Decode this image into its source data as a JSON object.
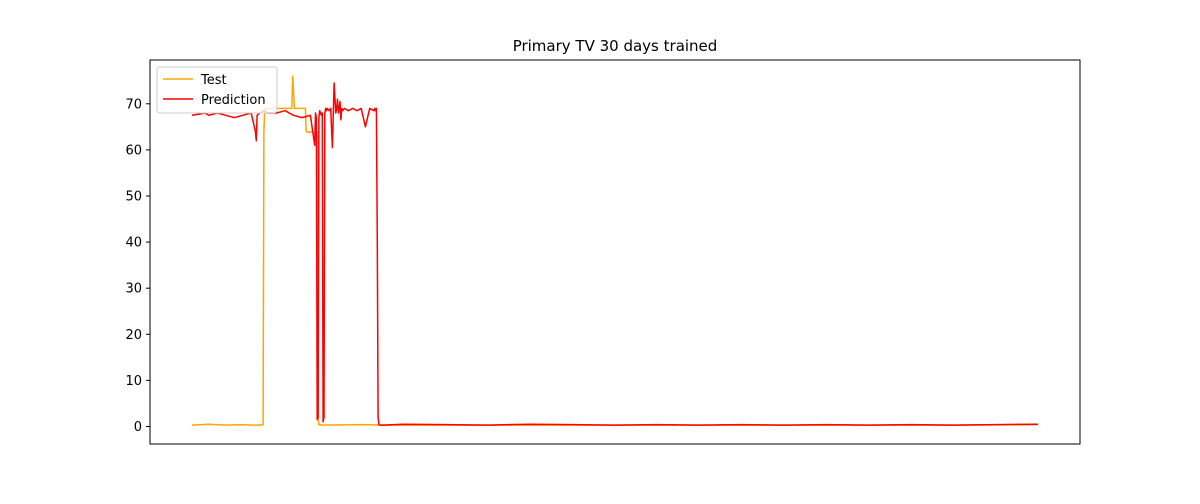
{
  "chart_data": {
    "type": "line",
    "title": "Primary TV 30 days trained",
    "xlabel": "",
    "ylabel": "",
    "ylim": [
      -3.8,
      79.5
    ],
    "xlim": [
      0,
      1000
    ],
    "yticks": [
      0,
      10,
      20,
      30,
      40,
      50,
      60,
      70
    ],
    "xticks_visible": false,
    "grid": false,
    "legend_position": "top-left",
    "series": [
      {
        "name": "Test",
        "color": "#ffa500",
        "x": [
          0,
          20,
          40,
          60,
          70,
          80,
          84,
          85,
          86,
          88,
          90,
          110,
          118,
          119,
          121,
          125,
          132,
          134,
          135,
          138,
          141,
          145,
          148,
          149,
          150,
          151,
          152,
          154,
          200,
          230,
          240,
          250,
          400,
          500,
          520,
          600,
          700,
          800,
          900,
          1000
        ],
        "y": [
          0.3,
          0.5,
          0.3,
          0.4,
          0.3,
          0.3,
          0.4,
          64,
          69,
          68.8,
          69,
          69,
          69,
          76,
          69,
          69,
          69,
          69,
          64,
          63.8,
          64,
          63.5,
          63.8,
          1.5,
          0.4,
          0.3,
          0.4,
          0.3,
          0.4,
          0.3,
          0.3,
          0.3,
          0.3,
          0.3,
          0.3,
          0.3,
          0.3,
          0.3,
          0.3,
          0.4
        ]
      },
      {
        "name": "Prediction",
        "color": "#ff0000",
        "x": [
          0,
          10,
          15,
          20,
          30,
          40,
          50,
          60,
          70,
          75,
          76,
          77,
          80,
          85,
          90,
          100,
          110,
          120,
          130,
          140,
          145,
          146,
          147,
          148,
          149,
          150,
          151,
          152,
          153,
          154,
          155,
          156,
          157,
          158,
          159,
          160,
          162,
          164,
          166,
          168,
          170,
          171,
          172,
          173,
          174,
          175,
          176,
          177,
          178,
          180,
          185,
          190,
          195,
          200,
          205,
          210,
          215,
          216,
          217,
          218,
          219,
          220,
          221,
          222,
          225,
          250,
          300,
          350,
          400,
          450,
          500,
          550,
          600,
          650,
          700,
          750,
          800,
          850,
          900,
          950,
          1000
        ],
        "y": [
          67.5,
          67.8,
          68,
          67.5,
          68,
          67.5,
          67,
          67.5,
          68,
          64,
          62,
          67.5,
          68,
          68.5,
          68,
          68,
          68.5,
          67.5,
          67,
          67.5,
          61,
          68,
          67,
          1.5,
          2,
          67,
          68.5,
          68,
          67.5,
          68,
          1,
          2,
          68,
          69,
          68.5,
          69,
          68.5,
          69,
          60.5,
          74.5,
          68,
          69,
          71,
          68,
          69,
          70.5,
          66.5,
          69,
          68.5,
          69,
          68.5,
          69,
          68.5,
          69,
          65,
          69,
          68.5,
          69,
          68.5,
          69,
          40,
          2,
          0.4,
          0.3,
          0.3,
          0.5,
          0.4,
          0.3,
          0.5,
          0.4,
          0.3,
          0.4,
          0.3,
          0.4,
          0.3,
          0.4,
          0.3,
          0.4,
          0.3,
          0.4,
          0.5
        ]
      }
    ]
  }
}
